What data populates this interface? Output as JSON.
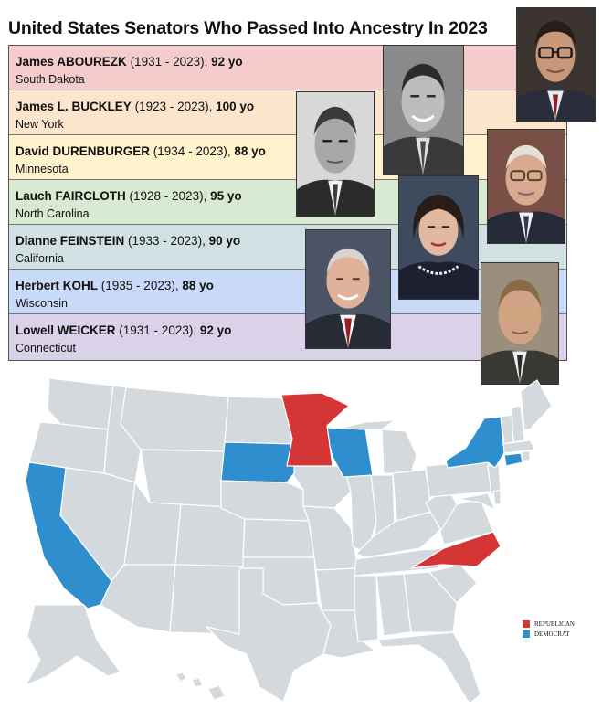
{
  "title": "United States Senators Who Passed Into Ancestry In 2023",
  "colors": {
    "republican": "#d63535",
    "democrat": "#2f8fce",
    "state_default": "#d3d9dc",
    "state_border": "#ffffff"
  },
  "senators": [
    {
      "name": "James ABOUREZK",
      "years": "(1931 - 2023),",
      "age": "92 yo",
      "state": "South Dakota",
      "row_color": "#f4cccc",
      "portrait": "portrait-abourezk"
    },
    {
      "name": "James L. BUCKLEY",
      "years": "(1923 - 2023),",
      "age": "100 yo",
      "state": "New York",
      "row_color": "#fce5cd",
      "portrait": "portrait-buckley"
    },
    {
      "name": "David DURENBURGER",
      "years": "(1934 - 2023),",
      "age": "88 yo",
      "state": "Minnesota",
      "row_color": "#fff2cc",
      "portrait": "portrait-durenberger"
    },
    {
      "name": "Lauch FAIRCLOTH",
      "years": "(1928 - 2023),",
      "age": "95 yo",
      "state": "North Carolina",
      "row_color": "#d9ead3",
      "portrait": "portrait-faircloth"
    },
    {
      "name": "Dianne FEINSTEIN",
      "years": "(1933 - 2023),",
      "age": "90 yo",
      "state": "California",
      "row_color": "#d0e0e3",
      "portrait": "portrait-feinstein"
    },
    {
      "name": "Herbert KOHL",
      "years": "(1935 - 2023),",
      "age": "88 yo",
      "state": "Wisconsin",
      "row_color": "#c9daf8",
      "portrait": "portrait-kohl"
    },
    {
      "name": "Lowell WEICKER",
      "years": "(1931 - 2023),",
      "age": "92 yo",
      "state": "Connecticut",
      "row_color": "#d9d2e9",
      "portrait": "portrait-weicker"
    }
  ],
  "legend": [
    {
      "label": "REPUBLICAN",
      "color": "#d63535"
    },
    {
      "label": "DEMOCRAT",
      "color": "#2f8fce"
    }
  ],
  "highlighted_states": {
    "republican": [
      "Minnesota",
      "North Carolina"
    ],
    "democrat": [
      "California",
      "South Dakota",
      "Wisconsin",
      "New York",
      "Connecticut"
    ]
  }
}
